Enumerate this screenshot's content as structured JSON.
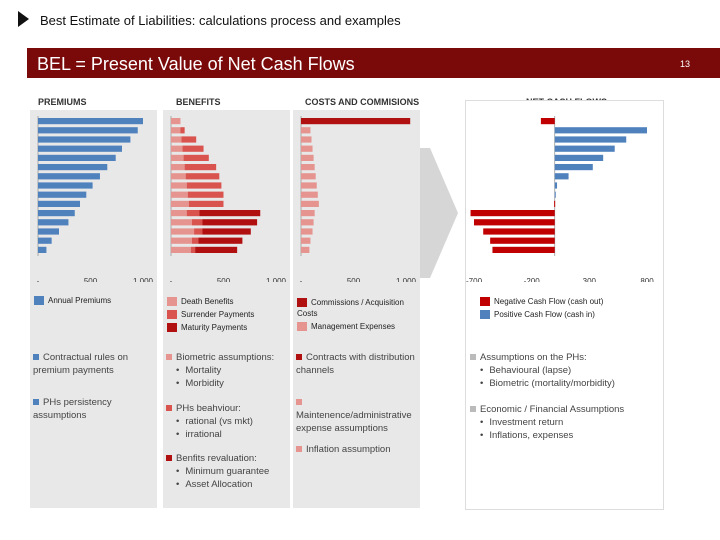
{
  "header": {
    "title": "Best Estimate of Liabilities: calculations process and examples",
    "banner": "BEL  = Present Value of Net Cash Flows",
    "page_number": "13"
  },
  "colors": {
    "banner": "#7a0a0a",
    "blue": "#4f81bd",
    "red": "#c00000",
    "pink": "#d9534f",
    "darkred": "#b01010"
  },
  "columns": {
    "premiums": {
      "title": "PREMIUMS",
      "ticks": [
        "-",
        "500",
        "1.000"
      ],
      "legend": [
        "Annual Premiums"
      ]
    },
    "benefits": {
      "title": "BENEFITS",
      "ticks": [
        "-",
        "500",
        "1.000"
      ],
      "legend": [
        "Death Benefits",
        "Surrender Payments",
        "Maturity Payments"
      ]
    },
    "costs": {
      "title": "COSTS AND COMMISIONS",
      "ticks": [
        "-",
        "500",
        "1.000"
      ],
      "legend": [
        "Commissions / Acquisition Costs",
        "Management Expenses"
      ]
    },
    "net": {
      "title": "NET CASH FLOWS",
      "ticks": [
        "-700",
        "-200",
        "300",
        "800"
      ],
      "legend": [
        "Negative Cash Flow (cash out)",
        "Positive Cash Flow (cash in)"
      ]
    }
  },
  "notes": {
    "premiums": [
      {
        "text": "Contractual rules on premium payments"
      },
      {
        "text": "PHs persistency assumptions"
      }
    ],
    "benefits": [
      {
        "text": "Biometric assumptions:",
        "items": [
          "Mortality",
          "Morbidity"
        ]
      },
      {
        "text": "PHs beahviour:",
        "items": [
          "rational (vs mkt)",
          "irrational"
        ]
      },
      {
        "text": "Benfits revaluation:",
        "items": [
          "Minimum guarantee",
          "Asset Allocation"
        ]
      }
    ],
    "costs": [
      {
        "text": "Contracts with distribution channels"
      },
      {
        "text": "Maintenence/administrative expense assumptions"
      },
      {
        "text": "Inflation assumption"
      }
    ],
    "net": [
      {
        "text": "Assumptions on the PHs:",
        "items": [
          "Behavioural (lapse)",
          "Biometric (mortality/morbidity)"
        ]
      },
      {
        "text": "Economic / Financial Assumptions",
        "items": [
          "Investment return",
          "Inflations, expenses"
        ]
      }
    ]
  },
  "chart_data": [
    {
      "type": "bar",
      "title": "PREMIUMS",
      "xlim": [
        0,
        1000
      ],
      "series": [
        {
          "name": "Annual Premiums",
          "values": [
            1000,
            950,
            880,
            800,
            740,
            660,
            590,
            520,
            460,
            400,
            350,
            290,
            200,
            130,
            80
          ]
        }
      ]
    },
    {
      "type": "bar",
      "title": "BENEFITS",
      "xlim": [
        0,
        1000
      ],
      "stacked": true,
      "series": [
        {
          "name": "Death Benefits",
          "values": [
            90,
            90,
            100,
            110,
            120,
            130,
            140,
            150,
            160,
            170,
            150,
            200,
            220,
            200,
            190
          ]
        },
        {
          "name": "Surrender Payments",
          "values": [
            0,
            40,
            140,
            200,
            240,
            300,
            320,
            330,
            340,
            330,
            120,
            100,
            80,
            60,
            40
          ]
        },
        {
          "name": "Maturity Payments",
          "values": [
            0,
            0,
            0,
            0,
            0,
            0,
            0,
            0,
            0,
            0,
            580,
            520,
            460,
            420,
            400
          ]
        }
      ]
    },
    {
      "type": "bar",
      "title": "COSTS AND COMMISIONS",
      "xlim": [
        0,
        1000
      ],
      "stacked": true,
      "series": [
        {
          "name": "Commissions / Acquisition Costs",
          "values": [
            1040,
            0,
            0,
            0,
            0,
            0,
            0,
            0,
            0,
            0,
            0,
            0,
            0,
            0,
            0
          ]
        },
        {
          "name": "Management Expenses",
          "values": [
            0,
            90,
            100,
            110,
            120,
            130,
            140,
            150,
            160,
            170,
            130,
            120,
            110,
            90,
            80
          ]
        }
      ]
    },
    {
      "type": "bar",
      "title": "NET CASH FLOWS",
      "xlim": [
        -700,
        800
      ],
      "series": [
        {
          "name": "Net",
          "values": [
            -120,
            800,
            620,
            520,
            420,
            330,
            120,
            20,
            5,
            -5,
            -730,
            -700,
            -620,
            -560,
            -540
          ]
        }
      ]
    }
  ]
}
